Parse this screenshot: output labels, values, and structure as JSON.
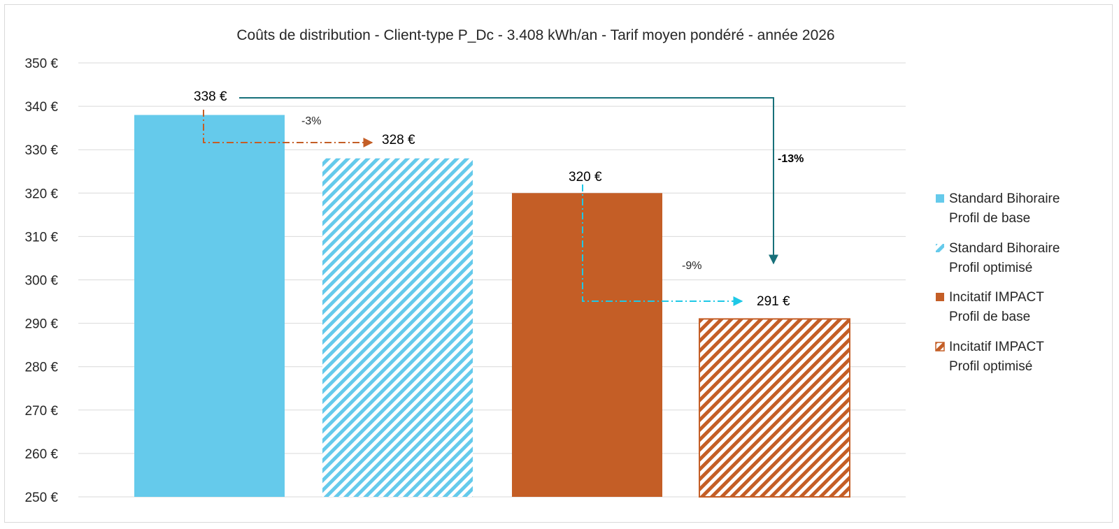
{
  "chart_data": {
    "type": "bar",
    "title": "Coûts de distribution - Client-type P_Dc - 3.408 kWh/an - Tarif moyen pondéré - année 2026",
    "xlabel": "",
    "ylabel": "",
    "ylim": [
      250,
      350
    ],
    "yticks": [
      250,
      260,
      270,
      280,
      290,
      300,
      310,
      320,
      330,
      340,
      350
    ],
    "ytick_suffix": " €",
    "grid": true,
    "legend_position": "right",
    "series": [
      {
        "name_line1": "Standard Bihoraire",
        "name_line2": "Profil de base",
        "value": 338,
        "label": "338 €",
        "color": "#65CAEB",
        "pattern": "solid"
      },
      {
        "name_line1": "Standard Bihoraire",
        "name_line2": "Profil optimisé",
        "value": 328,
        "label": "328 €",
        "color": "#65CAEB",
        "pattern": "hatch"
      },
      {
        "name_line1": "Incitatif IMPACT",
        "name_line2": "Profil de base",
        "value": 320,
        "label": "320 €",
        "color": "#C45E26",
        "pattern": "solid"
      },
      {
        "name_line1": "Incitatif IMPACT",
        "name_line2": "Profil optimisé",
        "value": 291,
        "label": "291 €",
        "color": "#C45E26",
        "pattern": "hatch"
      }
    ],
    "annotations": [
      {
        "text": "-3%",
        "from": 0,
        "to": 1,
        "color": "#C45E26",
        "style": "dash-dot",
        "bold": false
      },
      {
        "text": "-9%",
        "from": 2,
        "to": 3,
        "color": "#1EC8E6",
        "style": "dash-dot",
        "bold": false
      },
      {
        "text": "-13%",
        "from": 0,
        "to": 3,
        "color": "#17707A",
        "style": "solid",
        "bold": true
      }
    ]
  }
}
